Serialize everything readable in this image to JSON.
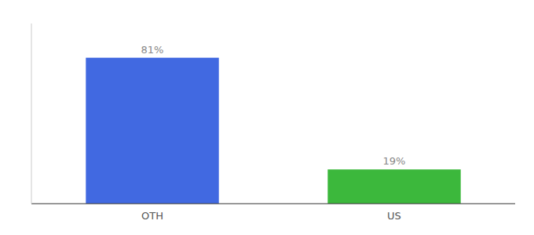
{
  "chart_data": {
    "type": "bar",
    "categories": [
      "OTH",
      "US"
    ],
    "values": [
      81,
      19
    ],
    "value_labels": [
      "81%",
      "19%"
    ],
    "colors": [
      "#4169e1",
      "#3cb83c"
    ],
    "ylim": [
      0,
      100
    ],
    "data_labels": true,
    "tick_labels": "x",
    "grid": false
  }
}
